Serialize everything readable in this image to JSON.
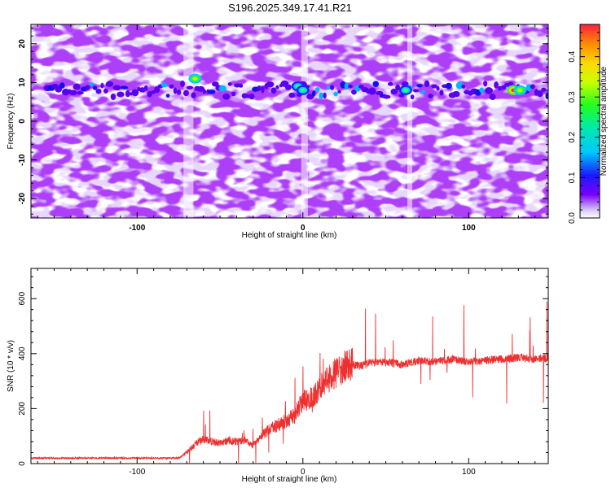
{
  "title": "S196.2025.349.17.41.R21",
  "colors": {
    "axis": "#000000",
    "snr_line": "#ee3030",
    "background": "#ffffff"
  },
  "chart_data": [
    {
      "type": "heatmap",
      "title": "S196.2025.349.17.41.R21",
      "xlabel": "Height of straight line (km)",
      "ylabel": "Frequency (Hz)",
      "xlim": [
        -164,
        148
      ],
      "ylim": [
        -25,
        25
      ],
      "x_ticks": [
        -100,
        0,
        100
      ],
      "y_ticks": [
        -20,
        -10,
        0,
        10,
        20
      ],
      "ridge_frequency_hz": 8,
      "hotspots": [
        {
          "x": -65,
          "y": 11,
          "amplitude": 0.35
        },
        {
          "x": -3,
          "y": 9,
          "amplitude": 0.28
        },
        {
          "x": 0,
          "y": 8,
          "amplitude": 0.3
        },
        {
          "x": 62,
          "y": 8,
          "amplitude": 0.25
        },
        {
          "x": 127,
          "y": 8,
          "amplitude": 0.45
        },
        {
          "x": 131,
          "y": 8,
          "amplitude": 0.4
        }
      ],
      "colorbar": {
        "label": "Normalized spectral amplitude",
        "range": [
          0.0,
          0.48
        ],
        "ticks": [
          0.0,
          0.1,
          0.2,
          0.3,
          0.4
        ],
        "tick_labels": [
          "0.0",
          "0.1",
          "0.2",
          "0.3",
          "0.4"
        ]
      }
    },
    {
      "type": "line",
      "xlabel": "Height of straight line (km)",
      "ylabel": "SNR (10 * v/v)",
      "xlim": [
        -164,
        148
      ],
      "ylim": [
        0,
        710
      ],
      "x_ticks": [
        -100,
        0,
        100
      ],
      "x_tick_labels": [
        "-100",
        "0",
        "100"
      ],
      "y_ticks": [
        0,
        200,
        400,
        600
      ],
      "y_tick_labels": [
        "0",
        "200",
        "400",
        "600"
      ],
      "series": [
        {
          "name": "SNR",
          "x": [
            -164,
            -150,
            -130,
            -110,
            -90,
            -75,
            -70,
            -65,
            -60,
            -55,
            -50,
            -45,
            -40,
            -35,
            -30,
            -25,
            -20,
            -15,
            -10,
            -5,
            0,
            5,
            10,
            15,
            20,
            25,
            30,
            35,
            40,
            50,
            60,
            70,
            80,
            90,
            100,
            110,
            120,
            130,
            140,
            148
          ],
          "values": [
            20,
            20,
            20,
            20,
            20,
            20,
            40,
            70,
            90,
            80,
            75,
            85,
            80,
            85,
            65,
            100,
            125,
            140,
            155,
            175,
            230,
            235,
            275,
            305,
            330,
            350,
            360,
            355,
            365,
            370,
            360,
            375,
            370,
            380,
            370,
            375,
            380,
            385,
            380,
            385
          ]
        }
      ]
    }
  ]
}
